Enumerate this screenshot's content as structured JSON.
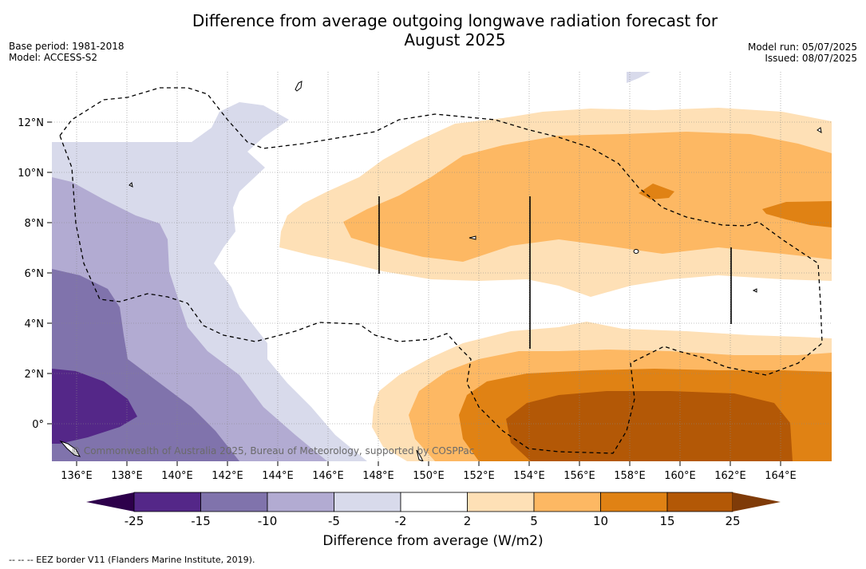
{
  "title": {
    "line1": "Difference from average outgoing longwave radiation forecast for",
    "line2": "August 2025"
  },
  "meta_left": {
    "base_period": "Base period: 1981-2018",
    "model": "Model: ACCESS-S2"
  },
  "meta_right": {
    "model_run": "Model run: 05/07/2025",
    "issued": "Issued: 08/07/2025"
  },
  "map": {
    "x_ticks": [
      "136°E",
      "138°E",
      "140°E",
      "142°E",
      "144°E",
      "146°E",
      "148°E",
      "150°E",
      "152°E",
      "154°E",
      "156°E",
      "158°E",
      "160°E",
      "162°E",
      "164°E"
    ],
    "y_ticks": [
      "12°N",
      "10°N",
      "8°N",
      "6°N",
      "4°N",
      "2°N",
      "0°"
    ],
    "copyright": "© Commonwealth of Australia 2025, Bureau of Meteorology, supported by COSPPac",
    "eez_line_style": "dashed",
    "grid": true
  },
  "colorbar": {
    "title": "Difference from average (W/m2)",
    "labels": [
      "-25",
      "-15",
      "-10",
      "-5",
      "-2",
      "2",
      "5",
      "10",
      "15",
      "25"
    ],
    "colors": {
      "below_min": "#2d004b",
      "bins": [
        "#542788",
        "#8073ac",
        "#b2abd2",
        "#d8daeb",
        "#ffffff",
        "#fee0b6",
        "#fdb863",
        "#e08214",
        "#b35806"
      ],
      "above_max": "#7f3b08"
    }
  },
  "eez_note": "--  --  -- EEZ border V11 (Flanders Marine Institute, 2019)."
}
